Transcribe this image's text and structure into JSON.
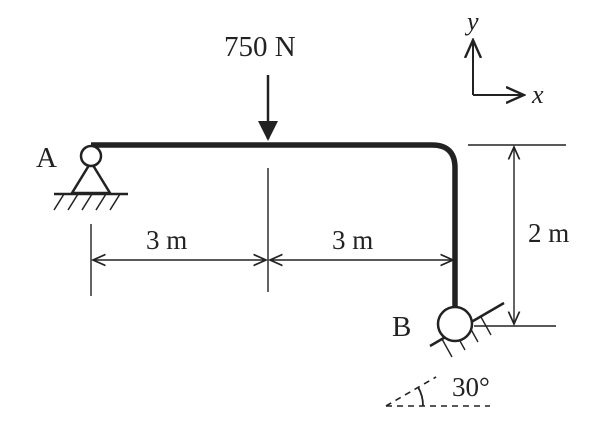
{
  "load": {
    "label": "750 N"
  },
  "points": {
    "a": "A",
    "b": "B"
  },
  "dimensions": {
    "left_span": "3 m",
    "right_span": "3 m",
    "height": "2 m"
  },
  "incline": {
    "angle_label": "30°"
  },
  "axes": {
    "x": "x",
    "y": "y"
  }
}
